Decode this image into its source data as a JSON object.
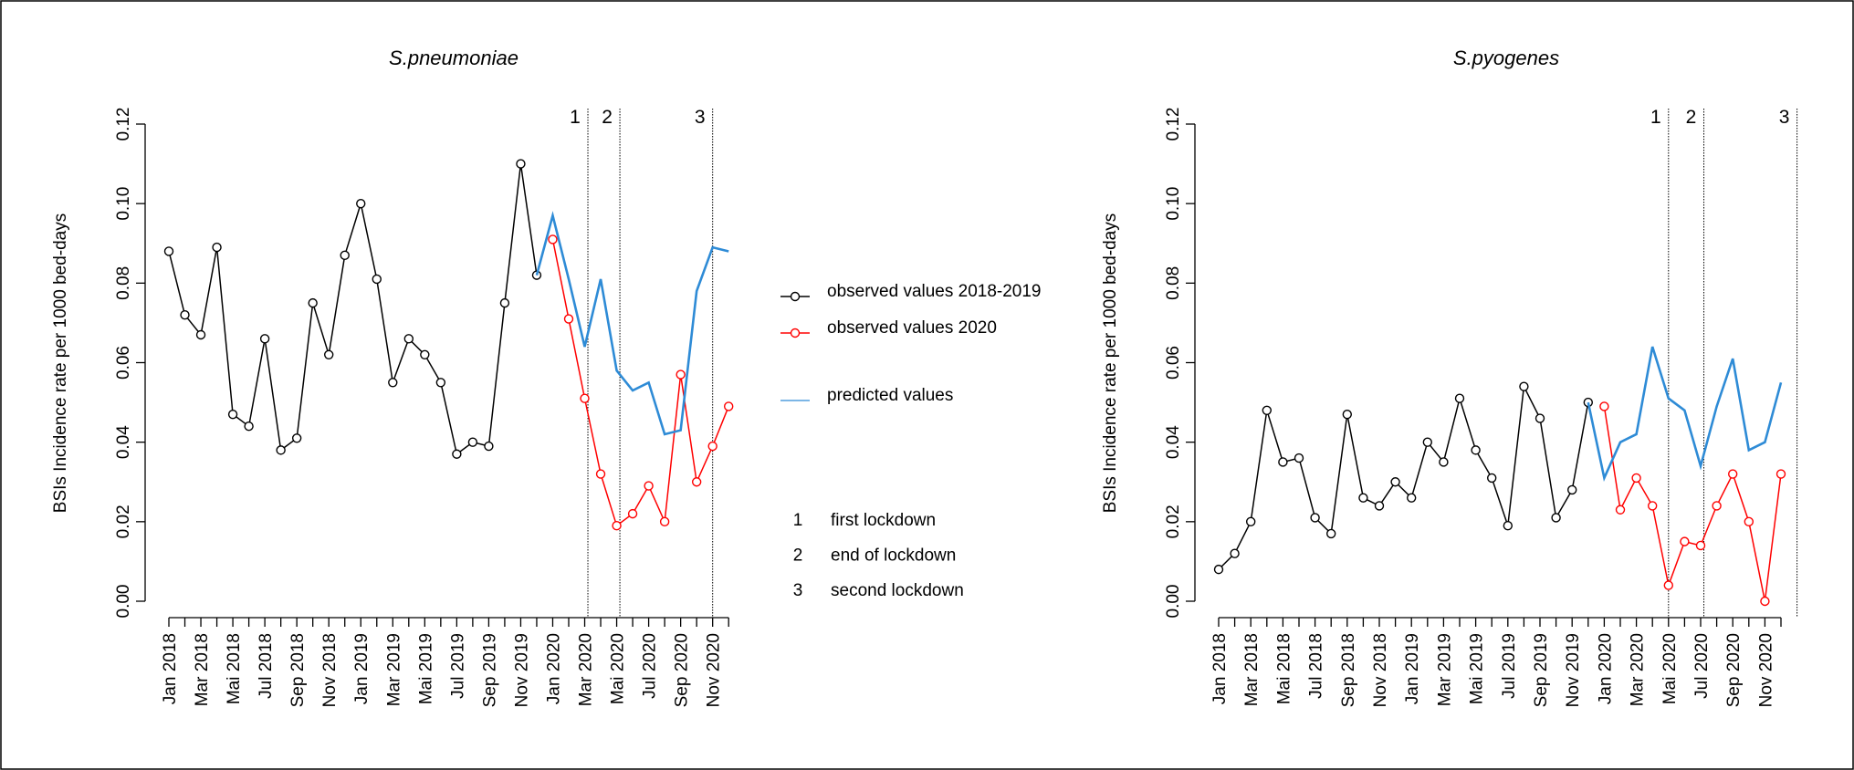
{
  "chart_data": [
    {
      "type": "line",
      "title": "S.pneumoniae",
      "ylabel": "BSIs Incidence rate per 1000 bed-days",
      "categories": [
        "Jan 2018",
        null,
        "Mar 2018",
        null,
        "Mai 2018",
        null,
        "Jul 2018",
        null,
        "Sep 2018",
        null,
        "Nov 2018",
        null,
        "Jan 2019",
        null,
        "Mar 2019",
        null,
        "Mai 2019",
        null,
        "Jul 2019",
        null,
        "Sep 2019",
        null,
        "Nov 2019",
        null,
        "Jan 2020",
        null,
        "Mar 2020",
        null,
        "Mai 2020",
        null,
        "Jul 2020",
        null,
        "Sep 2020",
        null,
        "Nov 2020",
        null
      ],
      "ylim": [
        0,
        0.12
      ],
      "yticks": [
        {
          "value": 0,
          "label": "0.00"
        },
        {
          "value": 0.02,
          "label": "0.02"
        },
        {
          "value": 0.04,
          "label": "0.04"
        },
        {
          "value": 0.06,
          "label": "0.06"
        },
        {
          "value": 0.08,
          "label": "0.08"
        },
        {
          "value": 0.1,
          "label": "0.10"
        },
        {
          "value": 0.12,
          "label": "0.12"
        }
      ],
      "series": [
        {
          "name": "observed values 2018-2019",
          "color": "#000000",
          "marker": true,
          "values": [
            0.088,
            0.072,
            0.067,
            0.089,
            0.047,
            0.044,
            0.066,
            0.038,
            0.041,
            0.075,
            0.062,
            0.087,
            0.1,
            0.081,
            0.055,
            0.066,
            0.062,
            0.055,
            0.037,
            0.04,
            0.039,
            0.075,
            0.11,
            0.082,
            null,
            null,
            null,
            null,
            null,
            null,
            null,
            null,
            null,
            null,
            null,
            null
          ]
        },
        {
          "name": "observed values 2020",
          "color": "#ff0000",
          "marker": true,
          "values": [
            null,
            null,
            null,
            null,
            null,
            null,
            null,
            null,
            null,
            null,
            null,
            null,
            null,
            null,
            null,
            null,
            null,
            null,
            null,
            null,
            null,
            null,
            null,
            null,
            0.091,
            0.071,
            0.051,
            0.032,
            0.019,
            0.022,
            0.029,
            0.02,
            0.057,
            0.03,
            0.039,
            0.049
          ]
        },
        {
          "name": "predicted values",
          "color": "#2e8bd6",
          "marker": false,
          "values": [
            null,
            null,
            null,
            null,
            null,
            null,
            null,
            null,
            null,
            null,
            null,
            null,
            null,
            null,
            null,
            null,
            null,
            null,
            null,
            null,
            null,
            null,
            null,
            0.082,
            0.097,
            0.081,
            0.064,
            0.081,
            0.058,
            0.053,
            0.055,
            0.042,
            0.043,
            0.078,
            0.089,
            0.088
          ]
        }
      ],
      "vlines": [
        {
          "label": "1",
          "x": 26.2
        },
        {
          "label": "2",
          "x": 28.2
        },
        {
          "label": "3",
          "x": 34
        }
      ],
      "legend": "right",
      "notes": [
        {
          "label": "1",
          "text": "first lockdown"
        },
        {
          "label": "2",
          "text": "end of lockdown"
        },
        {
          "label": "3",
          "text": "second lockdown"
        }
      ]
    },
    {
      "type": "line",
      "title": "S.pyogenes",
      "ylabel": "BSIs Incidence rate per 1000 bed-days",
      "categories": [
        "Jan 2018",
        null,
        "Mar 2018",
        null,
        "Mai 2018",
        null,
        "Jul 2018",
        null,
        "Sep 2018",
        null,
        "Nov 2018",
        null,
        "Jan 2019",
        null,
        "Mar 2019",
        null,
        "Mai 2019",
        null,
        "Jul 2019",
        null,
        "Sep 2019",
        null,
        "Nov 2019",
        null,
        "Jan 2020",
        null,
        "Mar 2020",
        null,
        "Mai 2020",
        null,
        "Jul 2020",
        null,
        "Sep 2020",
        null,
        "Nov 2020",
        null
      ],
      "ylim": [
        0,
        0.12
      ],
      "yticks": [
        {
          "value": 0,
          "label": "0.00"
        },
        {
          "value": 0.02,
          "label": "0.02"
        },
        {
          "value": 0.04,
          "label": "0.04"
        },
        {
          "value": 0.06,
          "label": "0.06"
        },
        {
          "value": 0.08,
          "label": "0.08"
        },
        {
          "value": 0.1,
          "label": "0.10"
        },
        {
          "value": 0.12,
          "label": "0.12"
        }
      ],
      "series": [
        {
          "color": "#000000",
          "marker": true,
          "values": [
            0.008,
            0.012,
            0.02,
            0.048,
            0.035,
            0.036,
            0.021,
            0.017,
            0.047,
            0.026,
            0.024,
            0.03,
            0.026,
            0.04,
            0.035,
            0.051,
            0.038,
            0.031,
            0.019,
            0.054,
            0.046,
            0.021,
            0.028,
            0.05,
            null,
            null,
            null,
            null,
            null,
            null,
            null,
            null,
            null,
            null,
            null,
            null
          ]
        },
        {
          "color": "#ff0000",
          "marker": true,
          "values": [
            null,
            null,
            null,
            null,
            null,
            null,
            null,
            null,
            null,
            null,
            null,
            null,
            null,
            null,
            null,
            null,
            null,
            null,
            null,
            null,
            null,
            null,
            null,
            null,
            0.049,
            0.023,
            0.031,
            0.024,
            0.004,
            0.015,
            0.014,
            0.024,
            0.032,
            0.02,
            0.0,
            0.032
          ]
        },
        {
          "color": "#2e8bd6",
          "marker": false,
          "values": [
            null,
            null,
            null,
            null,
            null,
            null,
            null,
            null,
            null,
            null,
            null,
            null,
            null,
            null,
            null,
            null,
            null,
            null,
            null,
            null,
            null,
            null,
            null,
            0.05,
            0.031,
            0.04,
            0.042,
            0.064,
            0.051,
            0.048,
            0.034,
            0.049,
            0.061,
            0.038,
            0.04,
            0.055
          ]
        }
      ],
      "vlines": [
        {
          "label": "1",
          "x": 28
        },
        {
          "label": "2",
          "x": 30.2
        },
        {
          "label": "3",
          "x": 36
        }
      ]
    }
  ]
}
